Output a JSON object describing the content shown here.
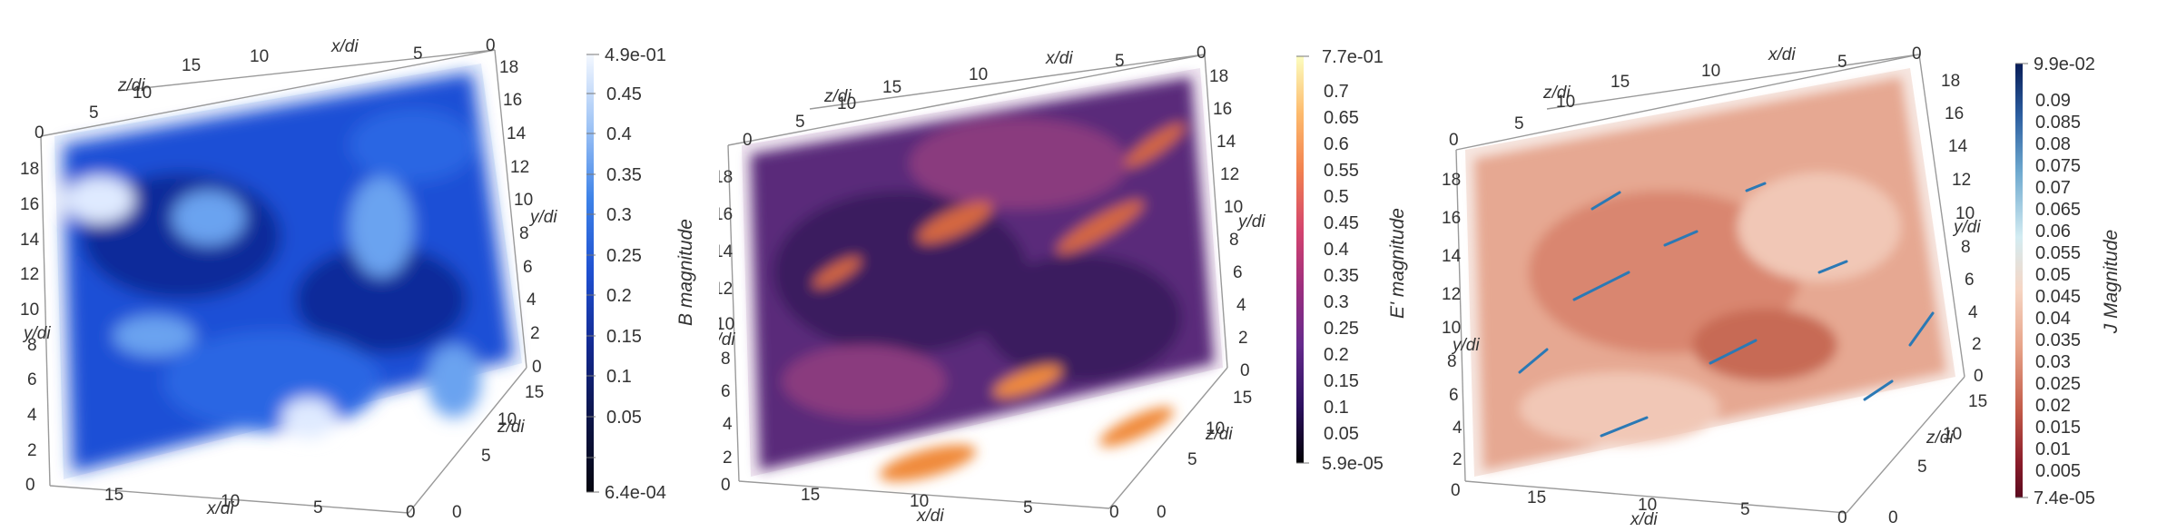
{
  "panels": [
    {
      "id": "b",
      "colorbar": {
        "title": "B magnitude",
        "max_label": "4.9e-01",
        "min_label": "6.4e-04",
        "ticks": [
          "0.45",
          "0.4",
          "0.35",
          "0.3",
          "0.25",
          "0.2",
          "0.15",
          "0.1",
          "0.05"
        ],
        "colors": [
          "#f4f8ff",
          "#9cc2f5",
          "#3d82e8",
          "#1e4fd0",
          "#12288f",
          "#0c1448",
          "#05060f"
        ]
      },
      "volume_colors": [
        "#1c4fd6",
        "#2a66e3",
        "#0f2a9a",
        "#6aa3f0",
        "#dfeaff"
      ],
      "axes": {
        "left_y": [
          "0",
          "2",
          "4",
          "6",
          "8",
          "10",
          "12",
          "14",
          "16",
          "18"
        ],
        "right_y": [
          "0",
          "2",
          "4",
          "6",
          "8",
          "10",
          "12",
          "14",
          "16",
          "18"
        ],
        "top_x": [
          "15",
          "10",
          "5",
          "0"
        ],
        "top_z": [
          "0",
          "5",
          "10"
        ],
        "bottom_x": [
          "15",
          "10",
          "5",
          "0"
        ],
        "bottom_z": [
          "15",
          "10",
          "5",
          "0"
        ],
        "y_title": "y/di",
        "x_title": "x/di",
        "z_title": "z/di"
      }
    },
    {
      "id": "e",
      "colorbar": {
        "title": "E' magnitude",
        "max_label": "7.7e-01",
        "min_label": "5.9e-05",
        "ticks": [
          "0.7",
          "0.65",
          "0.6",
          "0.55",
          "0.5",
          "0.45",
          "0.4",
          "0.35",
          "0.3",
          "0.25",
          "0.2",
          "0.15",
          "0.1",
          "0.05"
        ],
        "colors": [
          "#fcfdbf",
          "#fdbb6d",
          "#f2824f",
          "#d3436e",
          "#9c2e7f",
          "#652a8c",
          "#2d1160",
          "#000004"
        ]
      },
      "volume_colors": [
        "#5a2a7a",
        "#3b1b5e",
        "#8a3a7e",
        "#d5683f",
        "#f08a3a"
      ],
      "axes": {
        "left_y": [
          "0",
          "2",
          "4",
          "6",
          "8",
          "10",
          "12",
          "14",
          "16",
          "18"
        ],
        "right_y": [
          "0",
          "2",
          "4",
          "6",
          "8",
          "10",
          "12",
          "14",
          "16",
          "18"
        ],
        "top_x": [
          "15",
          "10",
          "5",
          "0"
        ],
        "top_z": [
          "0",
          "5",
          "10"
        ],
        "bottom_x": [
          "15",
          "10",
          "5",
          "0"
        ],
        "bottom_z": [
          "15",
          "10",
          "5",
          "0"
        ],
        "y_title": "y/di",
        "x_title": "x/di",
        "z_title": "z/di"
      }
    },
    {
      "id": "j",
      "colorbar": {
        "title": "J Magnitude",
        "max_label": "9.9e-02",
        "min_label": "7.4e-05",
        "ticks": [
          "0.09",
          "0.085",
          "0.08",
          "0.075",
          "0.07",
          "0.065",
          "0.06",
          "0.055",
          "0.05",
          "0.045",
          "0.04",
          "0.035",
          "0.03",
          "0.025",
          "0.02",
          "0.015",
          "0.01",
          "0.005"
        ],
        "colors": [
          "#081d58",
          "#2c5ea0",
          "#6ea9cf",
          "#d3ecf2",
          "#f6d6c4",
          "#e8a58a",
          "#c25a48",
          "#8a1c2a",
          "#5a0a1e"
        ]
      },
      "volume_colors": [
        "#e6a892",
        "#d98670",
        "#f1c7b6",
        "#c76a55",
        "#2b79b5"
      ],
      "axes": {
        "left_y": [
          "0",
          "2",
          "4",
          "6",
          "8",
          "10",
          "12",
          "14",
          "16",
          "18"
        ],
        "right_y": [
          "0",
          "2",
          "4",
          "6",
          "8",
          "10",
          "12",
          "14",
          "16",
          "18"
        ],
        "top_x": [
          "15",
          "10",
          "5",
          "0"
        ],
        "top_z": [
          "0",
          "5",
          "10"
        ],
        "bottom_x": [
          "15",
          "10",
          "5",
          "0"
        ],
        "bottom_z": [
          "15",
          "10",
          "5",
          "0"
        ],
        "y_title": "y/di",
        "x_title": "x/di",
        "z_title": "z/di"
      }
    }
  ]
}
